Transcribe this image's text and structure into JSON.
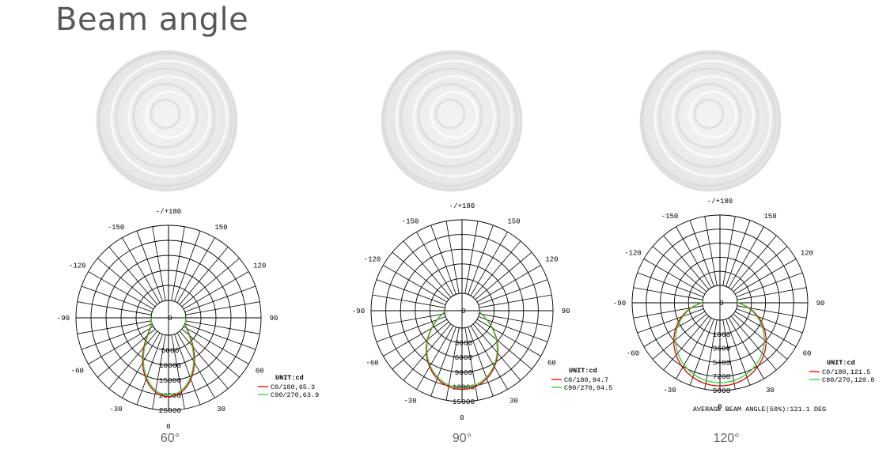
{
  "page": {
    "title": "Beam angle"
  },
  "chart_data": [
    {
      "type": "polar",
      "angle_labels": [
        "-/+180",
        "150",
        "120",
        "90",
        "60",
        "30",
        "0",
        "-30",
        "-60",
        "-90",
        "-120",
        "-150"
      ],
      "radial_ticks": [
        0,
        5000,
        10000,
        15000,
        20000,
        25000
      ],
      "radial_tick_labels": [
        "0",
        "5000",
        "10000",
        "15000",
        "20000",
        "25000"
      ],
      "unit": "UNIT:cd",
      "series": [
        {
          "name": "C0/180,65.3",
          "color": "#e00000",
          "peak": 20500,
          "half_width_deg": 32.6
        },
        {
          "name": "C90/270,63.9",
          "color": "#33cc33",
          "peak": 20000,
          "half_width_deg": 31.9
        }
      ],
      "footer": "",
      "caption": "60°"
    },
    {
      "type": "polar",
      "angle_labels": [
        "-/+180",
        "150",
        "120",
        "90",
        "60",
        "30",
        "0",
        "-30",
        "-60",
        "-90",
        "-120",
        "-150"
      ],
      "radial_ticks": [
        0,
        3000,
        6000,
        9000,
        12000,
        15000
      ],
      "radial_tick_labels": [
        "0",
        "3000",
        "6000",
        "9000",
        "12000",
        "15000"
      ],
      "unit": "UNIT:cd",
      "series": [
        {
          "name": "C0/180,94.7",
          "color": "#e00000",
          "peak": 12500,
          "half_width_deg": 47.3
        },
        {
          "name": "C90/270,94.5",
          "color": "#33cc33",
          "peak": 12200,
          "half_width_deg": 47.2
        }
      ],
      "footer": "",
      "caption": "90°"
    },
    {
      "type": "polar",
      "angle_labels": [
        "-/+180",
        "150",
        "120",
        "90",
        "60",
        "30",
        "0",
        "-30",
        "-60",
        "-90",
        "-120",
        "-150"
      ],
      "radial_ticks": [
        0,
        1800,
        3600,
        5400,
        7200,
        9000
      ],
      "radial_tick_labels": [
        "0",
        "1800",
        "3600",
        "5400",
        "7200",
        "9000"
      ],
      "unit": "UNIT:cd",
      "series": [
        {
          "name": "C0/180,121.5",
          "color": "#e00000",
          "peak": 8400,
          "half_width_deg": 60.7
        },
        {
          "name": "C90/270,120.8",
          "color": "#33cc33",
          "peak": 8000,
          "half_width_deg": 60.4
        }
      ],
      "footer": "AVERAGE BEAM ANGLE(50%):121.1 DEG",
      "caption": "120°"
    }
  ]
}
